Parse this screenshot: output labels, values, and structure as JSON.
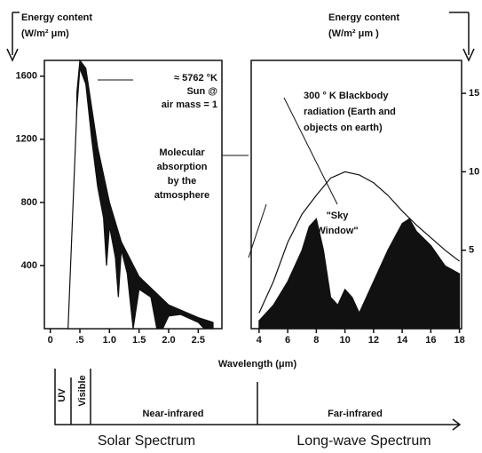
{
  "chart_data": [
    {
      "type": "area",
      "y_label": [
        "Energy content",
        "(W/m² μm)"
      ],
      "annotations": [
        [
          "≈ 5762 °K",
          "Sun @",
          "air mass = 1"
        ],
        [
          "Molecular",
          "absorption",
          "by the",
          "atmosphere"
        ]
      ],
      "xlim": [
        -0.1,
        2.9
      ],
      "ylim": [
        0,
        1700
      ],
      "xticks": [
        0,
        {
          "value": 0.5,
          "label": ".5"
        },
        {
          "value": 1,
          "label": "1.0"
        },
        {
          "value": 1.5,
          "label": "1.5"
        },
        {
          "value": 2,
          "label": "2.0"
        },
        {
          "value": 2.5,
          "label": "2.5"
        }
      ],
      "yticks": [
        400,
        800,
        1200,
        1600
      ],
      "series": [
        {
          "color": "#111111",
          "filled": true,
          "x": [
            0.3,
            0.4,
            0.45,
            0.5,
            0.6,
            0.7,
            0.8,
            1.0,
            1.2,
            1.5,
            2.0,
            2.5,
            2.75
          ],
          "values": [
            0,
            100,
            1500,
            1700,
            1650,
            1400,
            1150,
            800,
            550,
            330,
            150,
            70,
            40
          ]
        },
        {
          "color": "#ffffff",
          "filled": true,
          "x": [
            0.3,
            0.45,
            0.5,
            0.6,
            0.7,
            0.8,
            0.9,
            0.95,
            1.0,
            1.1,
            1.15,
            1.2,
            1.3,
            1.4,
            1.5,
            1.7,
            1.8,
            1.9,
            2.0,
            2.2,
            2.5,
            2.6
          ],
          "values": [
            0,
            1400,
            1650,
            1550,
            1200,
            900,
            700,
            400,
            650,
            450,
            200,
            500,
            350,
            0,
            250,
            200,
            0,
            0,
            80,
            90,
            40,
            0
          ]
        }
      ]
    },
    {
      "type": "area",
      "y_axis_side": "right",
      "y_label": [
        "Energy content",
        "(W/m² μm )"
      ],
      "annotations": [
        [
          "300 ° K Blackbody",
          "radiation (Earth and",
          "objects on earth)"
        ],
        [
          "\"Sky",
          "Window\""
        ]
      ],
      "xlim": [
        3.45,
        18.15
      ],
      "ylim": [
        0,
        17.1
      ],
      "xticks": [
        4,
        6,
        8,
        10,
        12,
        14,
        16,
        18
      ],
      "yticks": [
        5,
        10,
        15
      ],
      "series": [
        {
          "color": "#111111",
          "filled": true,
          "x": [
            4,
            5,
            6,
            7,
            7.5,
            8,
            8.5,
            9,
            9.5,
            10,
            10.5,
            11,
            12,
            13,
            14,
            14.5,
            15,
            16,
            17,
            18
          ],
          "values": [
            0.5,
            1.5,
            3,
            5,
            6.5,
            7,
            5,
            2,
            1.5,
            2.5,
            2,
            1,
            3,
            5,
            6.7,
            7,
            6.2,
            5.3,
            4,
            3.5
          ]
        },
        {
          "color": "#111111",
          "filled": false,
          "x": [
            4,
            5,
            6,
            7,
            8,
            9,
            10,
            11,
            12,
            13,
            14,
            15,
            16,
            17,
            18
          ],
          "values": [
            1,
            3,
            5.5,
            7.3,
            8.5,
            9.6,
            10,
            9.8,
            9.3,
            8.5,
            7.5,
            6.6,
            5.8,
            5,
            4.3
          ]
        }
      ]
    }
  ],
  "band": {
    "x_label": "Wavelength (μm)",
    "uv": "UV",
    "visible": "Visible",
    "near": "Near-infrared",
    "far": "Far-infrared",
    "solar": "Solar Spectrum",
    "longwave": "Long-wave Spectrum"
  }
}
